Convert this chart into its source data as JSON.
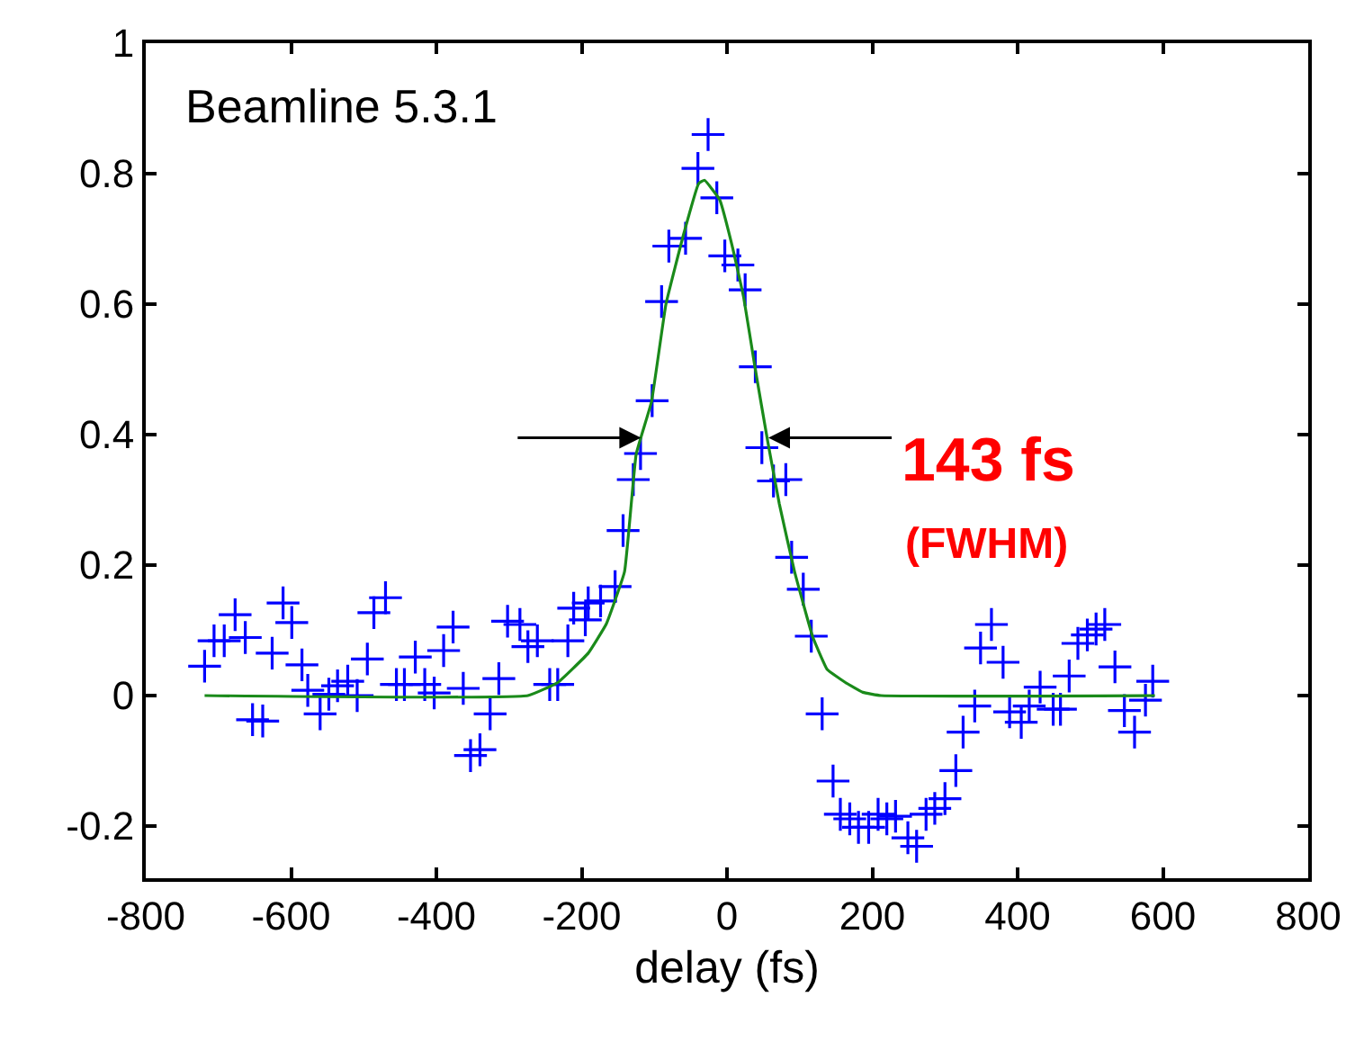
{
  "chart_data": {
    "type": "scatter",
    "xlabel": "delay (fs)",
    "annotations": [
      "Beamline 5.3.1",
      {
        "text": "143 fs",
        "x": 57,
        "y": 0.395
      },
      "(FWHM)"
    ],
    "xlim": [
      -800,
      800
    ],
    "xticks": [
      -800,
      -600,
      -400,
      -200,
      0,
      200,
      400,
      600,
      800
    ],
    "ylim": [
      -0.28,
      1
    ],
    "yticks": [
      -0.2,
      0,
      0.2,
      0.4,
      0.6,
      0.8,
      1
    ],
    "series": [
      {
        "marker": "cross",
        "color": "#0000ff",
        "x": [
          -719,
          -706,
          -692,
          -677,
          -663,
          -653,
          -639,
          -626,
          -611,
          -599,
          -585,
          -577,
          -560,
          -548,
          -536,
          -522,
          -509,
          -495,
          -486,
          -470,
          -455,
          -444,
          -429,
          -416,
          -403,
          -390,
          -377,
          -363,
          -353,
          -340,
          -326,
          -314,
          -302,
          -285,
          -274,
          -261,
          -244,
          -233,
          -219,
          -211,
          -195,
          -191,
          -174,
          -154,
          -143,
          -129,
          -119,
          -103,
          -90,
          -80,
          -57,
          -40,
          -26,
          -14,
          -3,
          15,
          25,
          39,
          48,
          64,
          81,
          89,
          105,
          116,
          131,
          146,
          156,
          169,
          181,
          195,
          208,
          220,
          232,
          249,
          261,
          274,
          286,
          300,
          315,
          325,
          341,
          349,
          364,
          380,
          389,
          405,
          416,
          431,
          449,
          459,
          471,
          483,
          496,
          508,
          520,
          534,
          547,
          561,
          576,
          586
        ],
        "values": [
          0.045,
          0.084,
          0.084,
          0.124,
          0.089,
          -0.037,
          -0.039,
          0.065,
          0.142,
          0.112,
          0.047,
          0.008,
          -0.028,
          0.002,
          0.015,
          0.022,
          0,
          0.056,
          0.127,
          0.15,
          0.017,
          0.017,
          0.059,
          0.017,
          0.004,
          0.069,
          0.105,
          0.011,
          -0.092,
          -0.083,
          -0.028,
          0.026,
          0.114,
          0.109,
          0.075,
          0.084,
          0.017,
          0.017,
          0.084,
          0.134,
          0.116,
          0.142,
          0.145,
          0.167,
          0.253,
          0.331,
          0.371,
          0.452,
          0.604,
          0.689,
          0.701,
          0.808,
          0.86,
          0.763,
          0.674,
          0.66,
          0.622,
          0.504,
          0.38,
          0.329,
          0.331,
          0.212,
          0.163,
          0.091,
          -0.028,
          -0.131,
          -0.182,
          -0.189,
          -0.202,
          -0.202,
          -0.182,
          -0.189,
          -0.185,
          -0.218,
          -0.231,
          -0.182,
          -0.173,
          -0.158,
          -0.115,
          -0.056,
          -0.016,
          0.073,
          0.109,
          0.051,
          -0.025,
          -0.041,
          -0.016,
          0.013,
          -0.021,
          -0.021,
          0.03,
          0.08,
          0.093,
          0.102,
          0.109,
          0.044,
          -0.023,
          -0.056,
          -0.007,
          0.022
        ]
      },
      {
        "type": "line",
        "marker": "none",
        "line_style": "solid",
        "color": "#1a8a1a",
        "x": [
          -719,
          -274,
          -233,
          -191,
          -166,
          -141,
          -125,
          -104,
          -84,
          -59,
          -39,
          -31,
          -10,
          7,
          23,
          39,
          56,
          72,
          93,
          118,
          138,
          163,
          187,
          212,
          589
        ],
        "values": [
          0,
          0,
          0.02,
          0.065,
          0.11,
          0.19,
          0.37,
          0.45,
          0.6,
          0.71,
          0.785,
          0.79,
          0.76,
          0.69,
          0.61,
          0.5,
          0.39,
          0.294,
          0.19,
          0.09,
          0.04,
          0.02,
          0.005,
          0,
          0
        ]
      }
    ]
  }
}
